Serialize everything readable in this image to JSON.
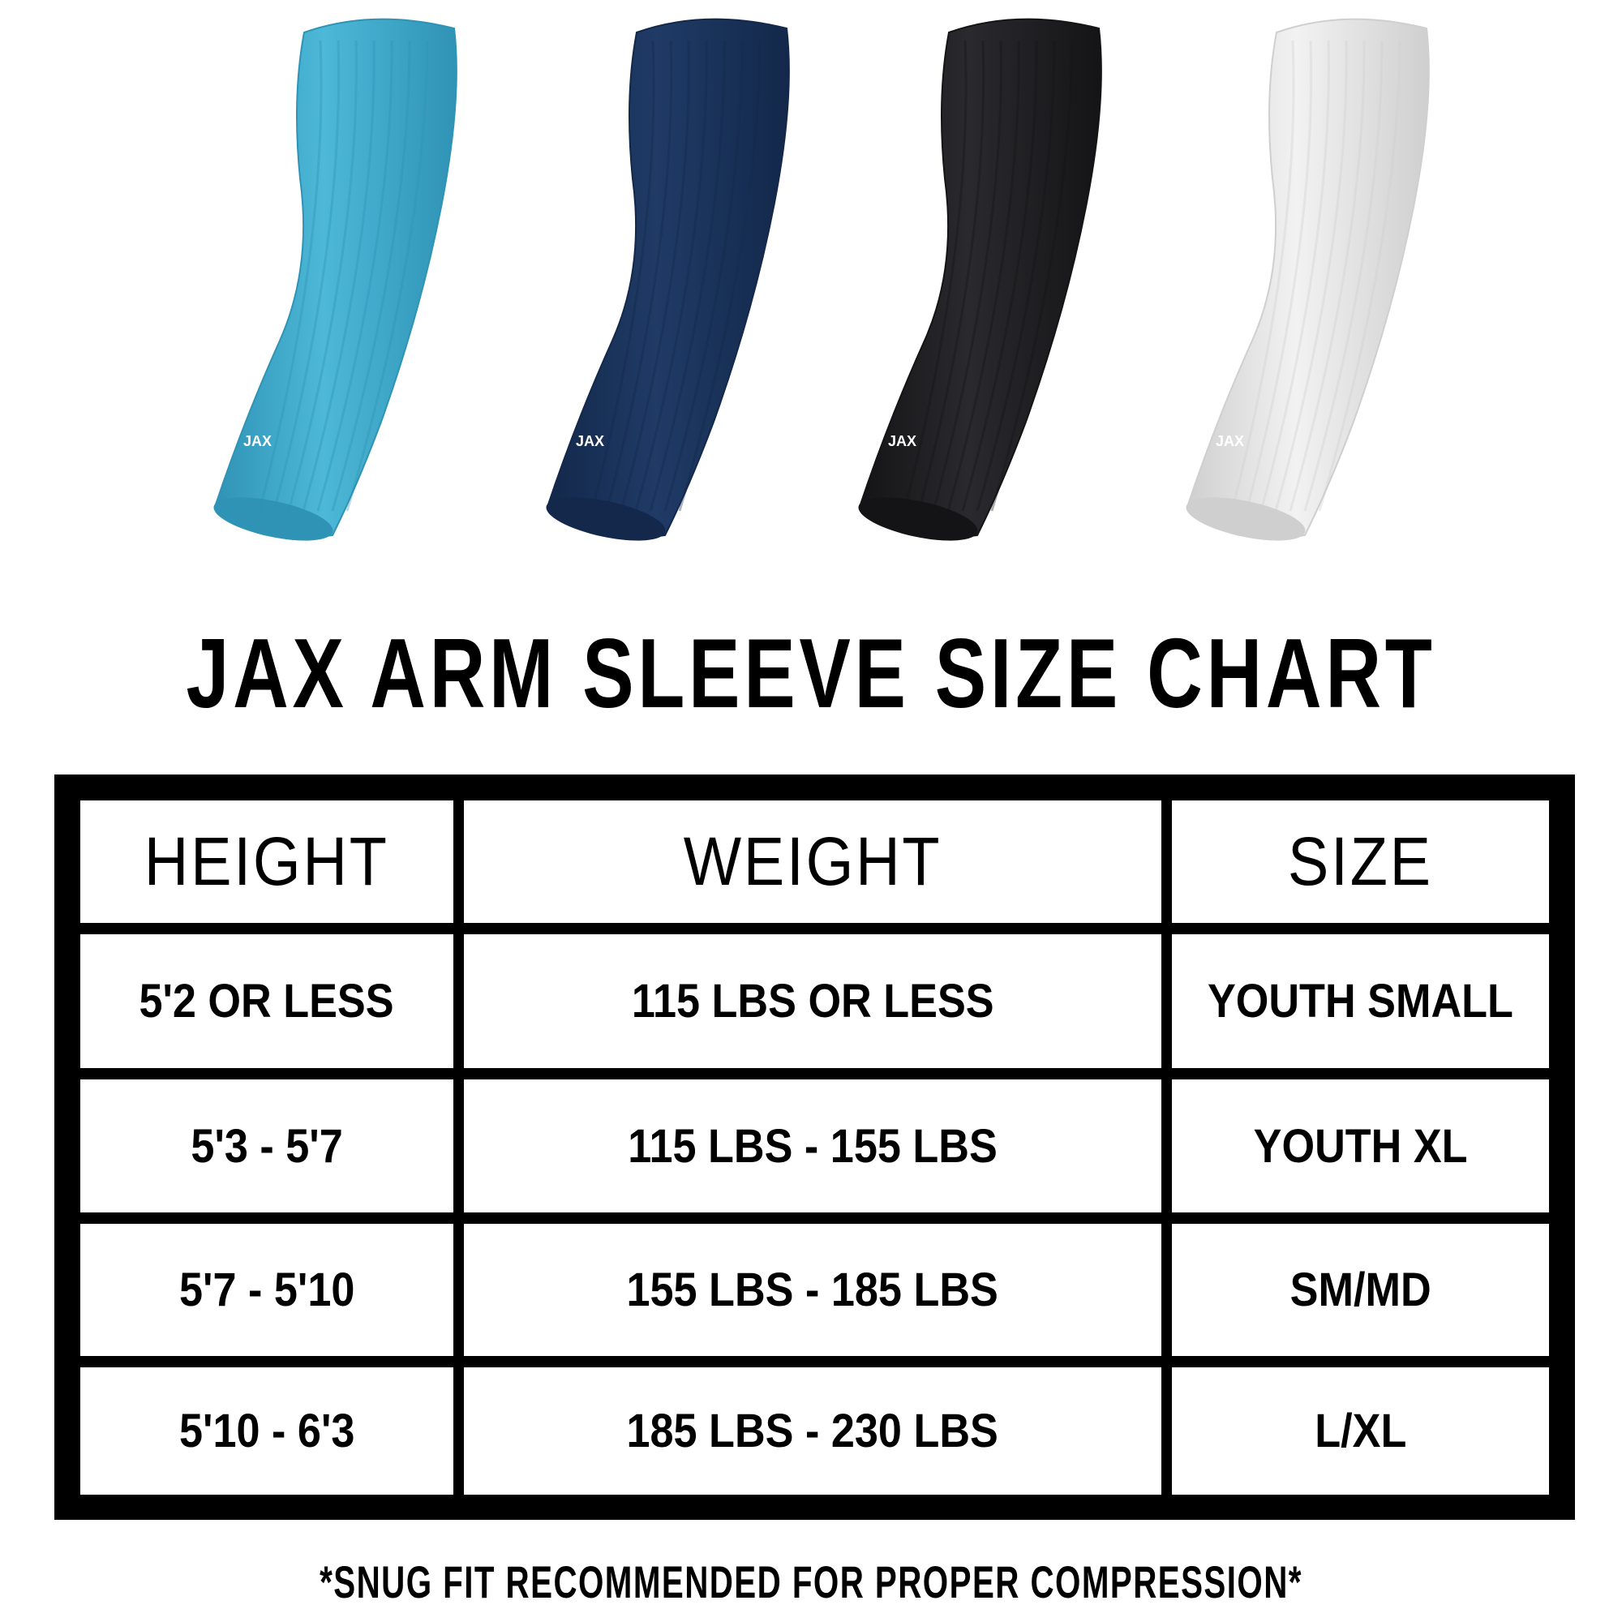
{
  "sleeves": [
    {
      "color_name": "light-blue",
      "color": "#4db8d8",
      "dark": "#2f93b5",
      "logo": "JAX"
    },
    {
      "color_name": "navy",
      "color": "#1f3b66",
      "dark": "#13284a",
      "logo": "JAX"
    },
    {
      "color_name": "black",
      "color": "#2a2a2e",
      "dark": "#141416",
      "logo": "JAX"
    },
    {
      "color_name": "white",
      "color": "#f2f2f2",
      "dark": "#cfcfcf",
      "logo": "JAX"
    }
  ],
  "title": "JAX ARM SLEEVE SIZE CHART",
  "table": {
    "headers": [
      "HEIGHT",
      "WEIGHT",
      "SIZE"
    ],
    "rows": [
      [
        "5'2 OR LESS",
        "115 LBS OR LESS",
        "YOUTH SMALL"
      ],
      [
        "5'3 - 5'7",
        "115 LBS - 155 LBS",
        "YOUTH XL"
      ],
      [
        "5'7 - 5'10",
        "155 LBS - 185 LBS",
        "SM/MD"
      ],
      [
        "5'10 - 6'3",
        "185 LBS - 230 LBS",
        "L/XL"
      ]
    ]
  },
  "footer": "*SNUG FIT RECOMMENDED FOR PROPER COMPRESSION*"
}
